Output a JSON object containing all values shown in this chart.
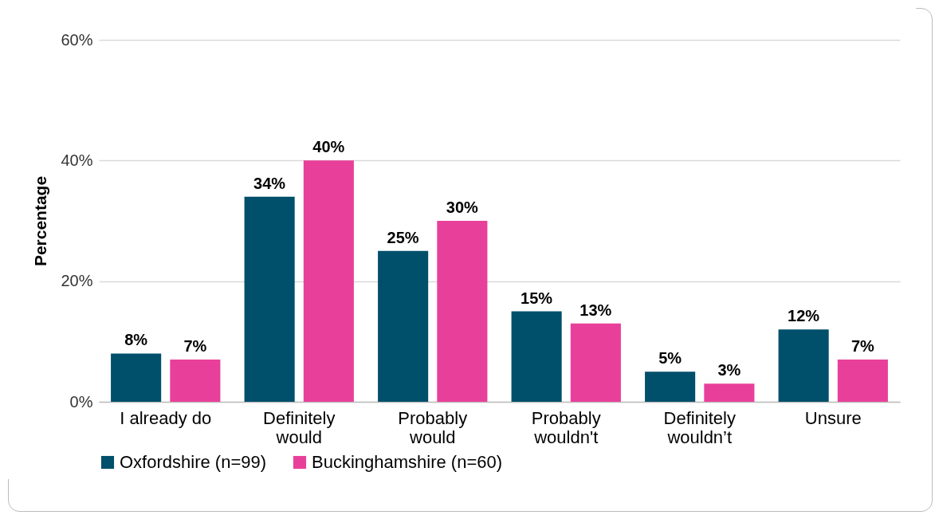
{
  "chart_data": {
    "type": "bar",
    "ylabel": "Percentage",
    "categories": [
      "I already do",
      "Definitely would",
      "Probably would",
      "Probably wouldn't",
      "Definitely wouldn’t",
      "Unsure"
    ],
    "series": [
      {
        "name": "Oxfordshire (n=99)",
        "color": "#004f6b",
        "values": [
          8,
          34,
          25,
          15,
          5,
          12
        ],
        "value_labels": [
          "8%",
          "34%",
          "25%",
          "15%",
          "5%",
          "12%"
        ]
      },
      {
        "name": "Buckinghamshire (n=60)",
        "color": "#e8409a",
        "values": [
          7,
          40,
          30,
          13,
          3,
          7
        ],
        "value_labels": [
          "7%",
          "40%",
          "30%",
          "13%",
          "3%",
          "7%"
        ]
      }
    ],
    "ylim": [
      0,
      60
    ],
    "yticks": [
      {
        "value": 0,
        "label": "0%"
      },
      {
        "value": 20,
        "label": "20%"
      },
      {
        "value": 40,
        "label": "40%"
      },
      {
        "value": 60,
        "label": "60%"
      }
    ],
    "grid": "y",
    "legend": "bottom"
  }
}
